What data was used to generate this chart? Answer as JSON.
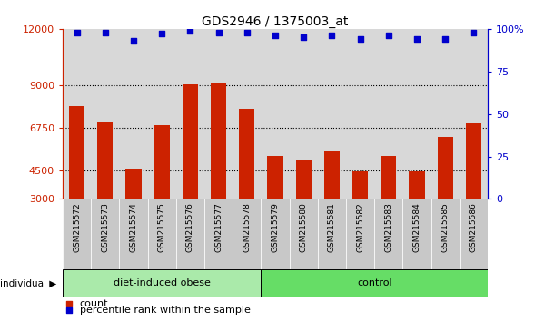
{
  "title": "GDS2946 / 1375003_at",
  "samples": [
    "GSM215572",
    "GSM215573",
    "GSM215574",
    "GSM215575",
    "GSM215576",
    "GSM215577",
    "GSM215578",
    "GSM215579",
    "GSM215580",
    "GSM215581",
    "GSM215582",
    "GSM215583",
    "GSM215584",
    "GSM215585",
    "GSM215586"
  ],
  "counts": [
    7900,
    7050,
    4600,
    6900,
    9050,
    9100,
    7750,
    5300,
    5100,
    5500,
    4450,
    5300,
    4450,
    6300,
    7000
  ],
  "percentile_ranks": [
    98,
    98,
    93,
    97,
    99,
    98,
    98,
    96,
    95,
    96,
    94,
    96,
    94,
    94,
    98
  ],
  "bar_color": "#cc2200",
  "dot_color": "#0000cc",
  "ylim_left": [
    3000,
    12000
  ],
  "ylim_right": [
    0,
    100
  ],
  "yticks_left": [
    3000,
    4500,
    6750,
    9000,
    12000
  ],
  "yticks_right": [
    0,
    25,
    50,
    75,
    100
  ],
  "groups": [
    {
      "label": "diet-induced obese",
      "start": 0,
      "end": 7,
      "color": "#aaeaaa"
    },
    {
      "label": "control",
      "start": 7,
      "end": 15,
      "color": "#66dd66"
    }
  ],
  "group_label_prefix": "individual",
  "legend_count_label": "count",
  "legend_percentile_label": "percentile rank within the sample",
  "background_color": "#ffffff",
  "plot_bg_color": "#d8d8d8",
  "tick_bg_color": "#c8c8c8"
}
